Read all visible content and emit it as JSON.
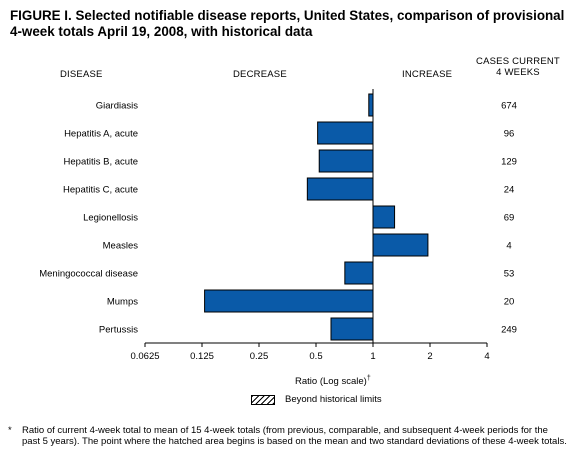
{
  "title": "FIGURE I. Selected notifiable disease reports, United States, comparison of provisional 4-week totals April 19, 2008, with historical data",
  "headers": {
    "disease": "DISEASE",
    "decrease": "DECREASE",
    "increase": "INCREASE",
    "cases_line1": "CASES CURRENT",
    "cases_line2": "4 WEEKS"
  },
  "chart_data": {
    "type": "bar",
    "orientation": "horizontal",
    "x_scale": "log2",
    "xlim": [
      0.0625,
      4
    ],
    "baseline": 1,
    "xlabel": "Ratio (Log scale)",
    "xlabel_mark": "†",
    "ticks": [
      "0.0625",
      "0.125",
      "0.25",
      "0.5",
      "1",
      "2",
      "4"
    ],
    "tick_values": [
      0.0625,
      0.125,
      0.25,
      0.5,
      1,
      2,
      4
    ],
    "categories": [
      "Giardiasis",
      "Hepatitis A, acute",
      "Hepatitis B, acute",
      "Hepatitis C, acute",
      "Legionellosis",
      "Measles",
      "Meningococcal disease",
      "Mumps",
      "Pertussis"
    ],
    "values": [
      0.95,
      0.51,
      0.52,
      0.45,
      1.3,
      1.95,
      0.71,
      0.129,
      0.6
    ],
    "cases": [
      "674",
      "96",
      "129",
      "24",
      "69",
      "4",
      "53",
      "20",
      "249"
    ],
    "bar_color": "#0a5aa8",
    "grid": false
  },
  "legend": {
    "label": "Beyond historical limits"
  },
  "footnote": {
    "mark": "*",
    "text": "Ratio of current 4-week total to mean of 15 4-week totals (from previous, comparable, and subsequent 4-week periods for the past 5 years). The point where the hatched area begins is based on the mean and two standard deviations of these 4-week totals."
  }
}
